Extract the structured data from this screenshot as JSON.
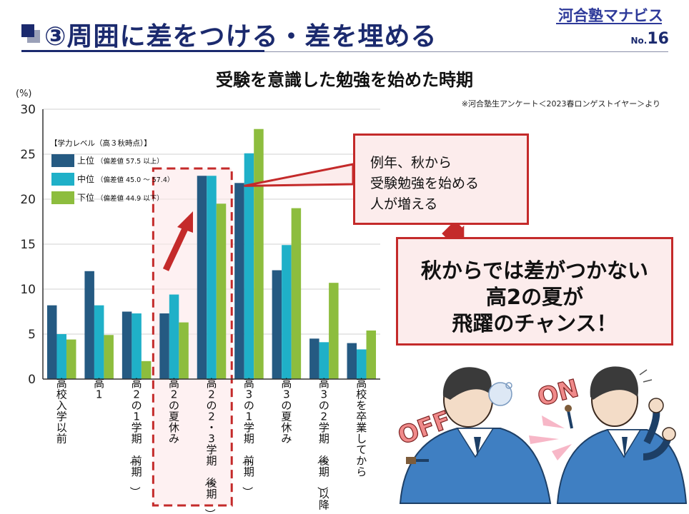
{
  "header": {
    "title": "③周囲に差をつける・差を埋める",
    "logo": "河合塾マナビス",
    "slide_no_prefix": "No.",
    "slide_no": "16"
  },
  "source_note": "※河合塾生アンケート＜2023春ロンゲストイヤー＞より",
  "callout1": {
    "text": "例年、秋から\n受験勉強を始める\n人が増える"
  },
  "callout2": {
    "text": "秋からでは差がつかない\n高2の夏が\n飛躍のチャンス！"
  },
  "illustration": {
    "off_label": "OFF",
    "on_label": "ON"
  },
  "colors": {
    "upper": "#255a82",
    "middle": "#1fb0c8",
    "lower": "#8dbd3e",
    "highlight": "#c42a2a",
    "navy": "#1b2a6e"
  },
  "chart_data": {
    "type": "bar",
    "title": "受験を意識した勉強を始めた時期",
    "ylabel": "(%)",
    "ylim": [
      0,
      30
    ],
    "yticks": [
      0,
      5,
      10,
      15,
      20,
      25,
      30
    ],
    "legend_title": "【学力レベル（高３秋時点）】",
    "legend_position": "top-left",
    "categories": [
      "高校入学以前",
      "高1",
      "高2の1学期（前期）",
      "高2の夏休み",
      "高2の2・3学期（後期）",
      "高3の1学期（前期）",
      "高3の夏休み",
      "高3の2学期（後期）以降",
      "高校を卒業してから"
    ],
    "series": [
      {
        "name": "上位",
        "detail": "（偏差値 57.5 以上）",
        "values": [
          8.2,
          12.0,
          7.5,
          7.3,
          22.6,
          21.8,
          12.1,
          4.5,
          4.0
        ]
      },
      {
        "name": "中位",
        "detail": "（偏差値 45.0 〜 57.4）",
        "values": [
          5.0,
          8.2,
          7.3,
          9.4,
          22.6,
          25.1,
          14.9,
          4.1,
          3.3
        ]
      },
      {
        "name": "下位",
        "detail": "（偏差値 44.9 以下）",
        "values": [
          4.4,
          4.9,
          2.0,
          6.3,
          19.5,
          27.8,
          19.0,
          10.7,
          5.4
        ]
      }
    ],
    "highlight_categories": [
      3,
      4
    ]
  }
}
